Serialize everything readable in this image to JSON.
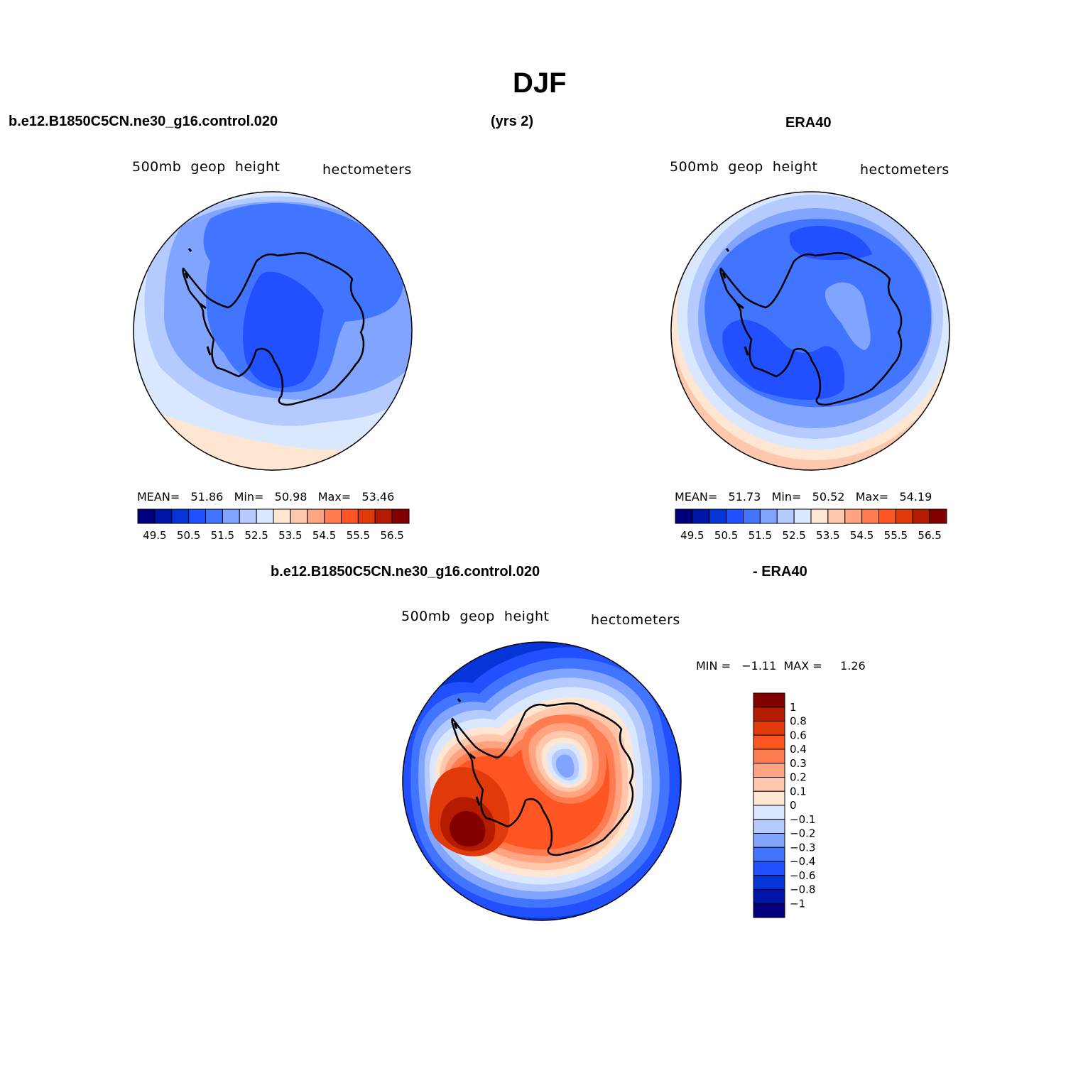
{
  "title": "DJF",
  "top": {
    "left_case": "b.e12.B1850C5CN.ne30_g16.control.020",
    "years": "(yrs 2)",
    "right_case": "ERA40"
  },
  "panels": [
    {
      "id": "model",
      "variable": "500mb  geop  height",
      "units": "hectometers",
      "stats": {
        "mean_label": "MEAN=",
        "mean": "51.86",
        "min_label": "Min=",
        "min": "50.98",
        "max_label": "Max=",
        "max": "53.46"
      }
    },
    {
      "id": "obs",
      "variable": "500mb  geop  height",
      "units": "hectometers",
      "stats": {
        "mean_label": "MEAN=",
        "mean": "51.73",
        "min_label": "Min=",
        "min": "50.52",
        "max_label": "Max=",
        "max": "54.19"
      }
    }
  ],
  "diff": {
    "left_title": "b.e12.B1850C5CN.ne30_g16.control.020",
    "right_title": "- ERA40",
    "variable": "500mb  geop  height",
    "units": "hectometers",
    "minmax": {
      "min_label": "MIN =",
      "min": "−1.11",
      "max_label": "MAX =",
      "max": "1.26"
    }
  },
  "colorbar_abs": {
    "colors": [
      "#00007f",
      "#0016a8",
      "#0535d9",
      "#2050ff",
      "#4275ff",
      "#81a5ff",
      "#b5cbff",
      "#d9e8ff",
      "#ffe6d2",
      "#ffc8ad",
      "#ffa380",
      "#ff7c50",
      "#ff5523",
      "#e03a0a",
      "#b51b00",
      "#830000"
    ],
    "ticks": [
      "49.5",
      "50.5",
      "51.5",
      "52.5",
      "53.5",
      "54.5",
      "55.5",
      "56.5"
    ]
  },
  "colorbar_diff": {
    "colors": [
      "#830000",
      "#b51b00",
      "#e03a0a",
      "#ff5523",
      "#ff7c50",
      "#ffa380",
      "#ffc8ad",
      "#ffe6d2",
      "#d9e8ff",
      "#b5cbff",
      "#81a5ff",
      "#4275ff",
      "#2050ff",
      "#0535d9",
      "#0016a8",
      "#00007f"
    ],
    "ticks": [
      "1",
      "0.8",
      "0.6",
      "0.4",
      "0.3",
      "0.2",
      "0.1",
      "0",
      "−0.1",
      "−0.2",
      "−0.3",
      "−0.4",
      "−0.6",
      "−0.8",
      "−1"
    ]
  }
}
